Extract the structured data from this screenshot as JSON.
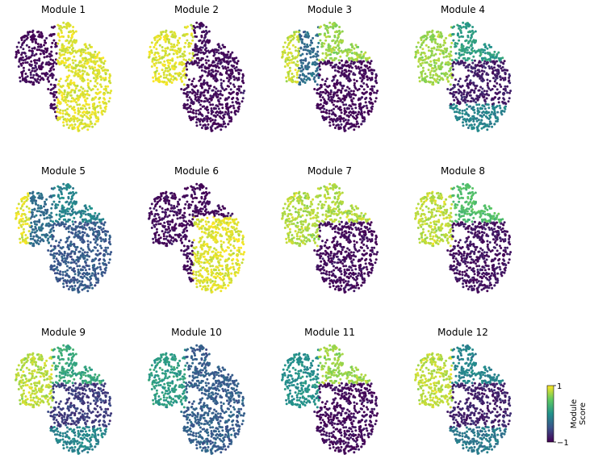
{
  "chart_data": {
    "type": "scatter",
    "panels": [
      {
        "title": "Module 1"
      },
      {
        "title": "Module 2"
      },
      {
        "title": "Module 3"
      },
      {
        "title": "Module 4"
      },
      {
        "title": "Module 5"
      },
      {
        "title": "Module 6"
      },
      {
        "title": "Module 7"
      },
      {
        "title": "Module 8"
      },
      {
        "title": "Module 9"
      },
      {
        "title": "Module 10"
      },
      {
        "title": "Module 11"
      },
      {
        "title": "Module 12"
      }
    ],
    "colorbar": {
      "label_line1": "Module",
      "label_line2": "Score",
      "min_label": "−1",
      "max_label": "1",
      "range": [
        -1,
        1
      ],
      "colormap": "viridis",
      "colors": [
        "#440154",
        "#3b528b",
        "#21918c",
        "#5ec962",
        "#fde725"
      ]
    },
    "axes_visible": false
  }
}
